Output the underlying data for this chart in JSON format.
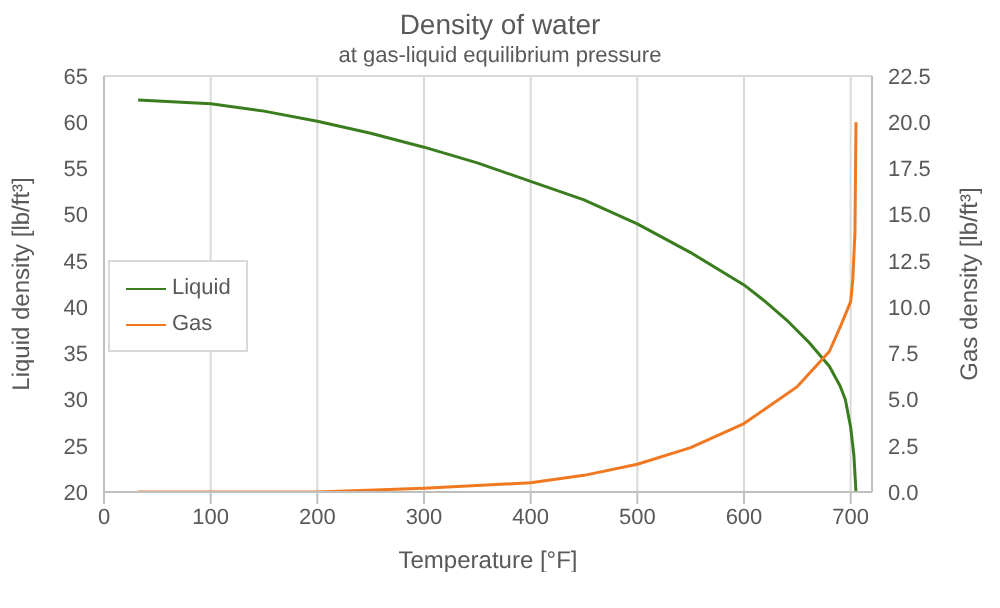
{
  "chart_data": {
    "type": "line",
    "title": "Density of water",
    "subtitle": "at gas-liquid equilibrium pressure",
    "xlabel": "Temperature  [°F]",
    "ylabel": "Liquid density [lb/ft³]",
    "y2label": "Gas density [lb/ft³]",
    "xlim": [
      0,
      720
    ],
    "xticks": [
      0,
      100,
      200,
      300,
      400,
      500,
      600,
      700
    ],
    "ylim": [
      20,
      65
    ],
    "yticks": [
      20,
      25,
      30,
      35,
      40,
      45,
      50,
      55,
      60,
      65
    ],
    "y2lim": [
      0,
      22.5
    ],
    "y2ticks": [
      {
        "value": 0,
        "label": "0.0"
      },
      {
        "value": 2.5,
        "label": "2.5"
      },
      {
        "value": 5,
        "label": "5.0"
      },
      {
        "value": 7.5,
        "label": "7.5"
      },
      {
        "value": 10,
        "label": "10.0"
      },
      {
        "value": 12.5,
        "label": "12.5"
      },
      {
        "value": 15,
        "label": "15.0"
      },
      {
        "value": 17.5,
        "label": "17.5"
      },
      {
        "value": 20,
        "label": "20.0"
      },
      {
        "value": 22.5,
        "label": "22.5"
      }
    ],
    "grid": true,
    "legend": "left",
    "marker": "none",
    "line_style": "solid",
    "series": [
      {
        "name": "Liquid",
        "color": "#3a7d1e",
        "x": [
          32,
          100,
          150,
          200,
          250,
          300,
          350,
          400,
          450,
          500,
          550,
          600,
          620,
          640,
          660,
          680,
          690,
          695,
          700,
          703,
          705
        ],
        "values": [
          62.4,
          62.0,
          61.2,
          60.1,
          58.8,
          57.3,
          55.6,
          53.6,
          51.6,
          49.0,
          45.9,
          42.4,
          40.6,
          38.6,
          36.3,
          33.6,
          31.5,
          30.0,
          27.0,
          24.0,
          20.0
        ]
      },
      {
        "name": "Gas",
        "color": "#f07820",
        "axis": "y2",
        "x": [
          32,
          100,
          200,
          300,
          400,
          450,
          500,
          550,
          600,
          650,
          680,
          690,
          700,
          702,
          704,
          705
        ],
        "values": [
          0.0,
          0.0,
          0.0,
          0.2,
          0.5,
          0.9,
          1.5,
          2.4,
          3.7,
          5.7,
          7.6,
          8.9,
          10.3,
          11.5,
          14.0,
          20.0
        ]
      }
    ]
  }
}
